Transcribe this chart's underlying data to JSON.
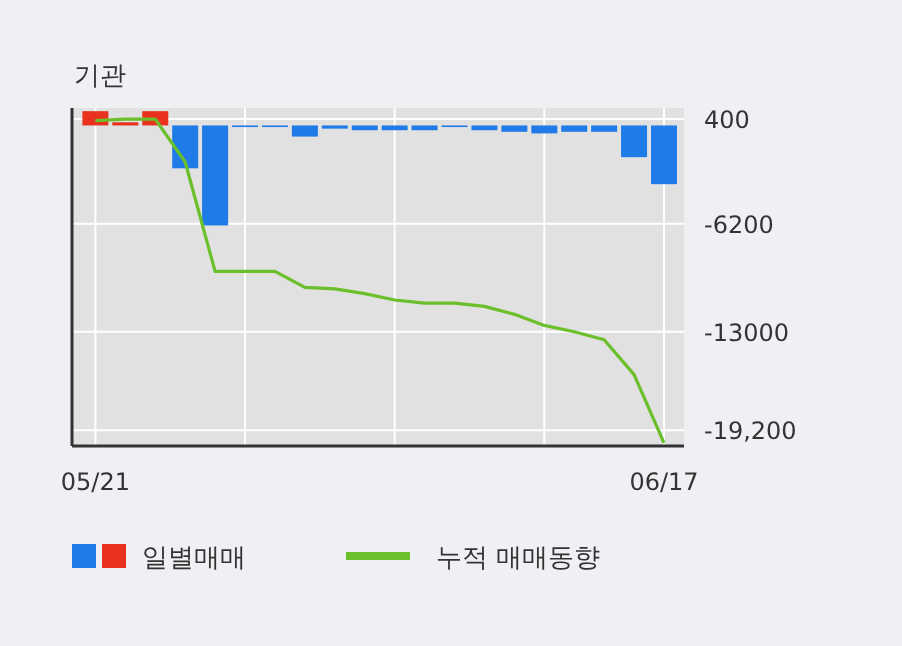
{
  "chart_data": {
    "type": "bar",
    "title": "기관",
    "categories": [
      "05/21",
      null,
      null,
      null,
      null,
      null,
      null,
      null,
      null,
      null,
      null,
      null,
      null,
      null,
      null,
      null,
      null,
      null,
      null,
      "06/17"
    ],
    "series": [
      {
        "name": "일별매매",
        "colors": [
          "#e8321e",
          "#e8321e",
          "#e8321e",
          "#1e7be8",
          "#1e7be8",
          "#1e7be8",
          "#1e7be8",
          "#1e7be8",
          "#1e7be8",
          "#1e7be8",
          "#1e7be8",
          "#1e7be8",
          "#1e7be8",
          "#1e7be8",
          "#1e7be8",
          "#1e7be8",
          "#1e7be8",
          "#1e7be8",
          "#1e7be8",
          "#1e7be8"
        ],
        "values": [
          900,
          200,
          900,
          -2700,
          -6300,
          0,
          0,
          -700,
          -200,
          -300,
          -300,
          -300,
          0,
          -300,
          -400,
          -500,
          -400,
          -400,
          -2000,
          -3700
        ]
      },
      {
        "name": "누적 매매동향",
        "type": "line",
        "color": "#6abf2a",
        "values": [
          300,
          400,
          400,
          -2300,
          -9200,
          -9200,
          -9200,
          -10200,
          -10300,
          -10600,
          -11000,
          -11200,
          -11200,
          -11400,
          -11900,
          -12600,
          -13000,
          -13500,
          -15700,
          -20000
        ]
      }
    ],
    "ylim": [
      -20200,
      1100
    ],
    "yticks": [
      400,
      {
        "value": -6200,
        "label": "-6200"
      },
      {
        "value": -13000,
        "label": "-13000"
      },
      {
        "value": -19200,
        "label": "-19,200"
      }
    ],
    "grid": true,
    "legend": "bottom"
  }
}
